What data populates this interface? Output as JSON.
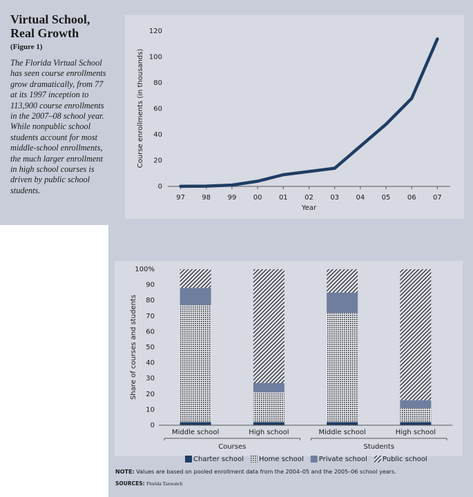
{
  "sidebar": {
    "title": "Virtual School, Real Growth",
    "figure": "(Figure 1)",
    "text": "The Florida Virtual School has seen course enrollments grow dramatically, from 77 at its 1997 inception to 113,900 course enrollments in the 2007–08 school year. While nonpublic school students account for most middle-school enrollments, the much larger enrollment in high school courses is driven by public school students."
  },
  "chart_data": [
    {
      "type": "line",
      "categories": [
        "97",
        "98",
        "99",
        "00",
        "01",
        "02",
        "03",
        "04",
        "05",
        "06",
        "07"
      ],
      "values": [
        0.077,
        0.2,
        1,
        4,
        9,
        11.5,
        14,
        31,
        48,
        68,
        113.9
      ],
      "color": "#1f3d63",
      "ylim": [
        0,
        120
      ],
      "yticks": [
        0,
        20,
        40,
        60,
        80,
        100,
        120
      ],
      "ylabel": "Course enrollments (in thousands)",
      "xlabel": "Year"
    },
    {
      "type": "stacked_bar",
      "categories": [
        "Middle school",
        "High school",
        "Middle school",
        "High school"
      ],
      "groups": [
        "Courses",
        "Students"
      ],
      "series": [
        {
          "name": "Charter school",
          "color": "#1f3d63",
          "values": [
            2,
            2,
            2,
            2
          ]
        },
        {
          "name": "Home school",
          "color": "#2a2f3a",
          "pattern": "dots",
          "values": [
            75,
            19,
            70,
            9
          ]
        },
        {
          "name": "Private school",
          "color": "#6f7e9e",
          "values": [
            11,
            6,
            13,
            5
          ]
        },
        {
          "name": "Public school",
          "color": "#3a3f4a",
          "pattern": "hatch",
          "values": [
            12,
            73,
            15,
            84
          ]
        }
      ],
      "ylim": [
        0,
        100
      ],
      "yticks": [
        0,
        10,
        20,
        30,
        40,
        50,
        60,
        70,
        80,
        90,
        {
          "value": 100,
          "label": "100%"
        }
      ],
      "ylabel": "Share of courses and students"
    }
  ],
  "notes": {
    "note_label": "NOTE:",
    "note": "Values are based on pooled enrollment data from the 2004–05 and the 2005–06 school years.",
    "sources_label": "SOURCES:",
    "sources": "Florida Taxwatch"
  }
}
